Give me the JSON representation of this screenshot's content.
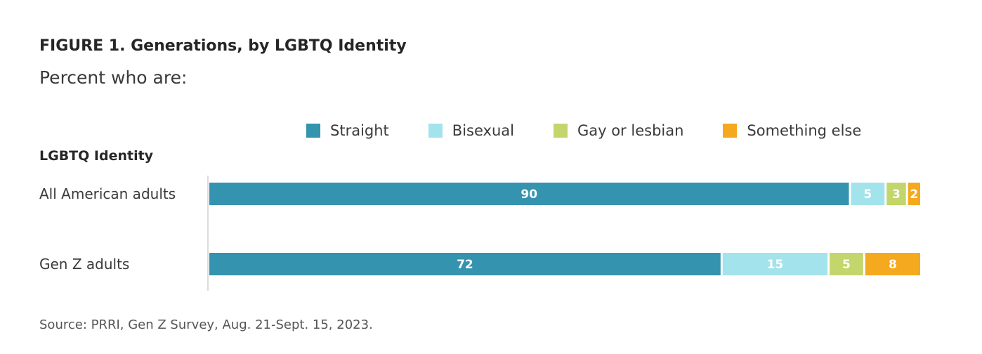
{
  "figure": {
    "title": "FIGURE 1.  Generations, by LGBTQ Identity",
    "subtitle": "Percent who are:",
    "group_header": "LGBTQ Identity",
    "source": "Source: PRRI, Gen Z Survey, Aug. 21-Sept. 15, 2023."
  },
  "chart_data": {
    "type": "bar",
    "orientation": "horizontal",
    "stacked": true,
    "title": "FIGURE 1.  Generations, by LGBTQ Identity",
    "subtitle": "Percent who are:",
    "legend_placement": "top",
    "grid": false,
    "xlim": [
      0,
      100
    ],
    "categories": [
      "All American adults",
      "Gen Z adults"
    ],
    "series": [
      {
        "name": "Straight",
        "color": "#3493ae",
        "values": [
          90,
          72
        ]
      },
      {
        "name": "Bisexual",
        "color": "#a3e3eb",
        "values": [
          5,
          15
        ]
      },
      {
        "name": "Gay or lesbian",
        "color": "#c2d66b",
        "values": [
          3,
          5
        ]
      },
      {
        "name": "Something else",
        "color": "#f5a91f",
        "values": [
          2,
          8
        ]
      }
    ]
  }
}
